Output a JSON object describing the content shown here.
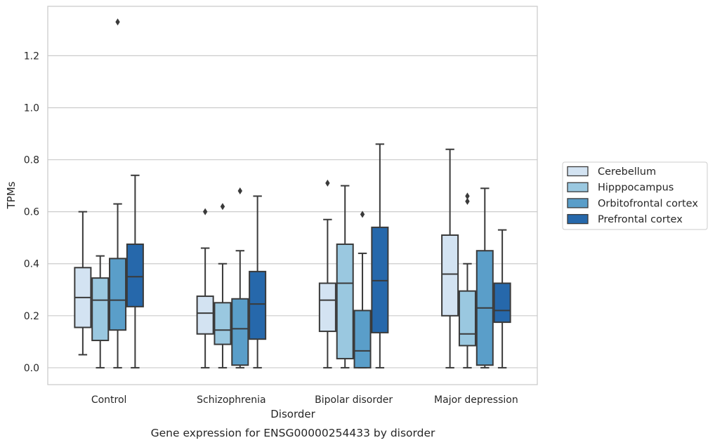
{
  "chart_data": {
    "type": "box",
    "caption": "Gene expression for ENSG00000254433 by disorder",
    "xlabel": "Disorder",
    "ylabel": "TPMs",
    "ylim": [
      -0.065,
      1.39
    ],
    "yticks": [
      "0.0",
      "0.2",
      "0.4",
      "0.6",
      "0.8",
      "1.0",
      "1.2"
    ],
    "grid": "horizontal",
    "legend_position": "right",
    "categories": [
      "Control",
      "Schizophrenia",
      "Bipolar disorder",
      "Major depression"
    ],
    "series": [
      {
        "name": "Cerebellum",
        "color": "#d3e3f2",
        "boxes": [
          {
            "whislo": 0.05,
            "q1": 0.155,
            "med": 0.27,
            "q3": 0.385,
            "whishi": 0.6,
            "fliers": []
          },
          {
            "whislo": 0.0,
            "q1": 0.13,
            "med": 0.21,
            "q3": 0.275,
            "whishi": 0.46,
            "fliers": [
              0.6
            ]
          },
          {
            "whislo": 0.0,
            "q1": 0.14,
            "med": 0.26,
            "q3": 0.325,
            "whishi": 0.57,
            "fliers": [
              0.71
            ]
          },
          {
            "whislo": 0.0,
            "q1": 0.2,
            "med": 0.36,
            "q3": 0.51,
            "whishi": 0.84,
            "fliers": []
          }
        ]
      },
      {
        "name": "Hipppocampus",
        "color": "#9ac8e0",
        "boxes": [
          {
            "whislo": 0.0,
            "q1": 0.105,
            "med": 0.26,
            "q3": 0.345,
            "whishi": 0.43,
            "fliers": []
          },
          {
            "whislo": 0.0,
            "q1": 0.09,
            "med": 0.145,
            "q3": 0.25,
            "whishi": 0.4,
            "fliers": [
              0.62
            ]
          },
          {
            "whislo": 0.0,
            "q1": 0.035,
            "med": 0.325,
            "q3": 0.475,
            "whishi": 0.7,
            "fliers": []
          },
          {
            "whislo": 0.0,
            "q1": 0.085,
            "med": 0.13,
            "q3": 0.295,
            "whishi": 0.4,
            "fliers": [
              0.64,
              0.66
            ]
          }
        ]
      },
      {
        "name": "Orbitofrontal cortex",
        "color": "#5a9ec9",
        "boxes": [
          {
            "whislo": 0.0,
            "q1": 0.145,
            "med": 0.26,
            "q3": 0.42,
            "whishi": 0.63,
            "fliers": [
              1.33
            ]
          },
          {
            "whislo": 0.0,
            "q1": 0.01,
            "med": 0.15,
            "q3": 0.265,
            "whishi": 0.45,
            "fliers": [
              0.68
            ]
          },
          {
            "whislo": 0.0,
            "q1": 0.0,
            "med": 0.065,
            "q3": 0.22,
            "whishi": 0.44,
            "fliers": [
              0.59
            ]
          },
          {
            "whislo": 0.0,
            "q1": 0.01,
            "med": 0.23,
            "q3": 0.45,
            "whishi": 0.69,
            "fliers": []
          }
        ]
      },
      {
        "name": "Prefrontal cortex",
        "color": "#2668ab",
        "boxes": [
          {
            "whislo": 0.0,
            "q1": 0.235,
            "med": 0.35,
            "q3": 0.475,
            "whishi": 0.74,
            "fliers": []
          },
          {
            "whislo": 0.0,
            "q1": 0.11,
            "med": 0.245,
            "q3": 0.37,
            "whishi": 0.66,
            "fliers": []
          },
          {
            "whislo": 0.0,
            "q1": 0.135,
            "med": 0.335,
            "q3": 0.54,
            "whishi": 0.86,
            "fliers": []
          },
          {
            "whislo": 0.0,
            "q1": 0.175,
            "med": 0.22,
            "q3": 0.325,
            "whishi": 0.53,
            "fliers": []
          }
        ]
      }
    ]
  }
}
